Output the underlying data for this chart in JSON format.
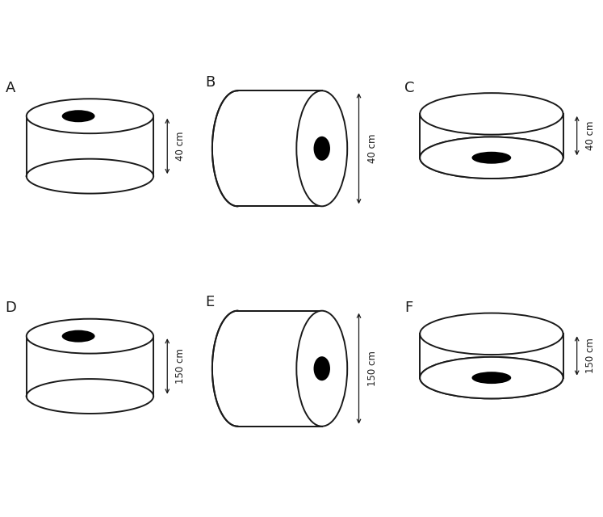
{
  "panels": [
    {
      "label": "A",
      "col": 0,
      "row": 0,
      "type": "top_view",
      "dim_label": "40 cm"
    },
    {
      "label": "B",
      "col": 1,
      "row": 0,
      "type": "side_view",
      "dim_label": "40 cm"
    },
    {
      "label": "C",
      "col": 2,
      "row": 0,
      "type": "bottom_view",
      "dim_label": "40 cm"
    },
    {
      "label": "D",
      "col": 0,
      "row": 1,
      "type": "top_view",
      "dim_label": "150 cm"
    },
    {
      "label": "E",
      "col": 1,
      "row": 1,
      "type": "side_view",
      "dim_label": "150 cm"
    },
    {
      "label": "F",
      "col": 2,
      "row": 1,
      "type": "bottom_view",
      "dim_label": "150 cm"
    }
  ],
  "bg_color": "#ffffff",
  "line_color": "#1a1a1a",
  "line_width": 1.4,
  "hole_color": "#000000",
  "label_fontsize": 13,
  "dim_fontsize": 8.5
}
